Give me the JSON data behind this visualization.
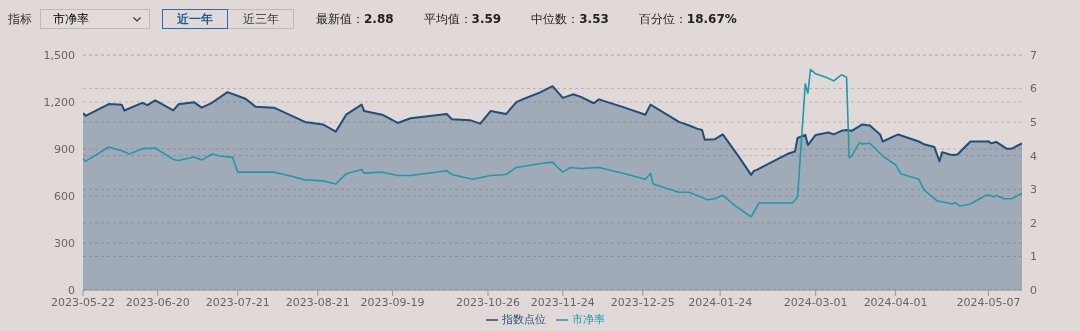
{
  "chart_data": {
    "type": "line",
    "annotations": [
      "指标",
      "市净率",
      "近一年",
      "近三年",
      "最新值：2.88",
      "平均值：3.59",
      "中位数：3.53",
      "百分位：18.67%"
    ],
    "xlim": [
      "2023-05-22",
      "2024-05-20"
    ],
    "xticks": [
      "2023-05-22",
      "2023-06-20",
      "2023-07-21",
      "2023-08-21",
      "2023-09-19",
      "2023-10-26",
      "2023-11-24",
      "2023-12-25",
      "2024-01-24",
      "2024-03-01",
      "2024-04-01",
      "2024-05-07"
    ],
    "ylim": [
      0,
      1500
    ],
    "yticks": [
      0,
      300,
      600,
      900,
      {
        "value": 1200,
        "label": "1,200"
      },
      {
        "value": 1500,
        "label": "1,500"
      }
    ],
    "y2lim": [
      0,
      7
    ],
    "y2ticks": [
      0,
      1,
      2,
      3,
      4,
      5,
      6,
      7
    ],
    "grid": true,
    "legend": "bottom",
    "marker": "none",
    "line_style": "solid",
    "series": [
      {
        "name": "指数点位",
        "type": "area",
        "color": "#1d4f7a",
        "x": [
          "2023-05-22",
          "2023-05-23",
          "2023-06-01",
          "2023-06-06",
          "2023-06-07",
          "2023-06-14",
          "2023-06-16",
          "2023-06-19",
          "2023-06-26",
          "2023-06-28",
          "2023-07-04",
          "2023-07-07",
          "2023-07-11",
          "2023-07-17",
          "2023-07-24",
          "2023-07-28",
          "2023-08-04",
          "2023-08-11",
          "2023-08-16",
          "2023-08-23",
          "2023-08-28",
          "2023-09-01",
          "2023-09-07",
          "2023-09-08",
          "2023-09-15",
          "2023-09-21",
          "2023-09-26",
          "2023-10-10",
          "2023-10-12",
          "2023-10-19",
          "2023-10-23",
          "2023-10-27",
          "2023-11-02",
          "2023-11-06",
          "2023-11-09",
          "2023-11-15",
          "2023-11-20",
          "2023-11-24",
          "2023-11-28",
          "2023-12-01",
          "2023-12-06",
          "2023-12-08",
          "2023-12-18",
          "2023-12-26",
          "2023-12-28",
          "2024-01-08",
          "2024-01-10",
          "2024-01-12",
          "2024-01-15",
          "2024-01-17",
          "2024-01-18",
          "2024-01-22",
          "2024-01-25",
          "2024-01-31",
          "2024-02-05",
          "2024-02-06",
          "2024-02-07",
          "2024-02-19",
          "2024-02-22",
          "2024-02-23",
          "2024-02-26",
          "2024-02-27",
          "2024-03-01",
          "2024-03-06",
          "2024-03-08",
          "2024-03-11",
          "2024-03-13",
          "2024-03-15",
          "2024-03-18",
          "2024-03-19",
          "2024-03-22",
          "2024-03-26",
          "2024-03-27",
          "2024-04-02",
          "2024-04-10",
          "2024-04-12",
          "2024-04-16",
          "2024-04-18",
          "2024-04-19",
          "2024-04-23",
          "2024-04-25",
          "2024-04-30",
          "2024-05-06",
          "2024-05-07",
          "2024-05-08",
          "2024-05-10",
          "2024-05-14",
          "2024-05-16",
          "2024-05-20"
        ],
        "values": [
          1130,
          1112,
          1187,
          1183,
          1146,
          1194,
          1180,
          1210,
          1146,
          1185,
          1199,
          1164,
          1195,
          1263,
          1221,
          1169,
          1164,
          1112,
          1073,
          1057,
          1011,
          1119,
          1183,
          1142,
          1119,
          1066,
          1096,
          1123,
          1090,
          1084,
          1062,
          1142,
          1123,
          1199,
          1221,
          1260,
          1301,
          1226,
          1249,
          1233,
          1192,
          1217,
          1164,
          1119,
          1183,
          1073,
          1062,
          1050,
          1030,
          1021,
          959,
          963,
          993,
          856,
          735,
          760,
          765,
          868,
          884,
          970,
          990,
          925,
          990,
          1005,
          993,
          1016,
          1021,
          1016,
          1046,
          1057,
          1050,
          993,
          948,
          993,
          948,
          930,
          913,
          822,
          879,
          861,
          865,
          948,
          948,
          950,
          936,
          945,
          902,
          902,
          936
        ]
      },
      {
        "name": "市净率",
        "axis": "y2",
        "color": "#1e9aaa",
        "x": [
          "2023-05-22",
          "2023-05-23",
          "2023-06-01",
          "2023-06-06",
          "2023-06-09",
          "2023-06-14",
          "2023-06-19",
          "2023-06-26",
          "2023-06-28",
          "2023-07-04",
          "2023-07-07",
          "2023-07-11",
          "2023-07-14",
          "2023-07-19",
          "2023-07-21",
          "2023-07-28",
          "2023-08-04",
          "2023-08-11",
          "2023-08-16",
          "2023-08-23",
          "2023-08-28",
          "2023-09-01",
          "2023-09-07",
          "2023-09-08",
          "2023-09-15",
          "2023-09-21",
          "2023-09-26",
          "2023-10-10",
          "2023-10-12",
          "2023-10-20",
          "2023-10-27",
          "2023-11-02",
          "2023-11-06",
          "2023-11-15",
          "2023-11-20",
          "2023-11-22",
          "2023-11-24",
          "2023-11-27",
          "2023-12-01",
          "2023-12-08",
          "2023-12-18",
          "2023-12-26",
          "2023-12-28",
          "2023-12-29",
          "2024-01-08",
          "2024-01-12",
          "2024-01-19",
          "2024-01-22",
          "2024-01-25",
          "2024-01-30",
          "2024-02-05",
          "2024-02-08",
          "2024-02-21",
          "2024-02-23",
          "2024-02-26",
          "2024-02-27",
          "2024-02-28",
          "2024-03-01",
          "2024-03-05",
          "2024-03-08",
          "2024-03-11",
          "2024-03-13",
          "2024-03-14",
          "2024-03-15",
          "2024-03-18",
          "2024-03-19",
          "2024-03-22",
          "2024-03-27",
          "2024-04-01",
          "2024-04-03",
          "2024-04-10",
          "2024-04-12",
          "2024-04-17",
          "2024-04-23",
          "2024-04-24",
          "2024-04-26",
          "2024-04-30",
          "2024-05-06",
          "2024-05-08",
          "2024-05-09",
          "2024-05-10",
          "2024-05-13",
          "2024-05-16",
          "2024-05-20"
        ],
        "values": [
          3.91,
          3.83,
          4.26,
          4.15,
          4.05,
          4.21,
          4.23,
          3.89,
          3.86,
          3.96,
          3.87,
          4.05,
          3.99,
          3.95,
          3.51,
          3.51,
          3.51,
          3.39,
          3.28,
          3.25,
          3.16,
          3.46,
          3.59,
          3.48,
          3.51,
          3.41,
          3.41,
          3.55,
          3.44,
          3.3,
          3.41,
          3.44,
          3.65,
          3.76,
          3.81,
          3.65,
          3.51,
          3.65,
          3.62,
          3.65,
          3.46,
          3.3,
          3.48,
          3.16,
          2.91,
          2.91,
          2.69,
          2.72,
          2.82,
          2.5,
          2.18,
          2.59,
          2.59,
          2.77,
          6.14,
          5.86,
          6.57,
          6.44,
          6.34,
          6.23,
          6.41,
          6.34,
          3.94,
          3.99,
          4.39,
          4.35,
          4.37,
          3.99,
          3.73,
          3.46,
          3.3,
          2.98,
          2.66,
          2.56,
          2.6,
          2.5,
          2.56,
          2.82,
          2.82,
          2.77,
          2.82,
          2.72,
          2.72,
          2.88
        ]
      }
    ]
  }
}
